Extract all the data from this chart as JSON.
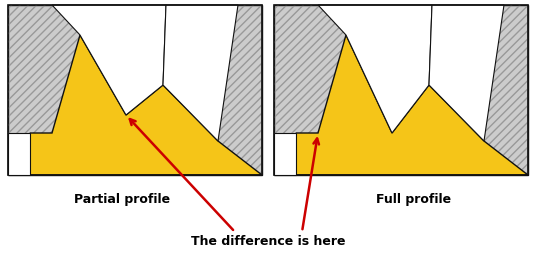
{
  "bg_color": "#ffffff",
  "panel_bg": "#cccccc",
  "yellow": "#F5C518",
  "yellow_edge": "#111111",
  "dark_edge": "#111111",
  "hatch_color": "#999999",
  "red": "#cc0000",
  "title": "The difference is here",
  "label_partial": "Partial profile",
  "label_full": "Full profile",
  "figsize": [
    5.36,
    2.58
  ],
  "dpi": 100
}
